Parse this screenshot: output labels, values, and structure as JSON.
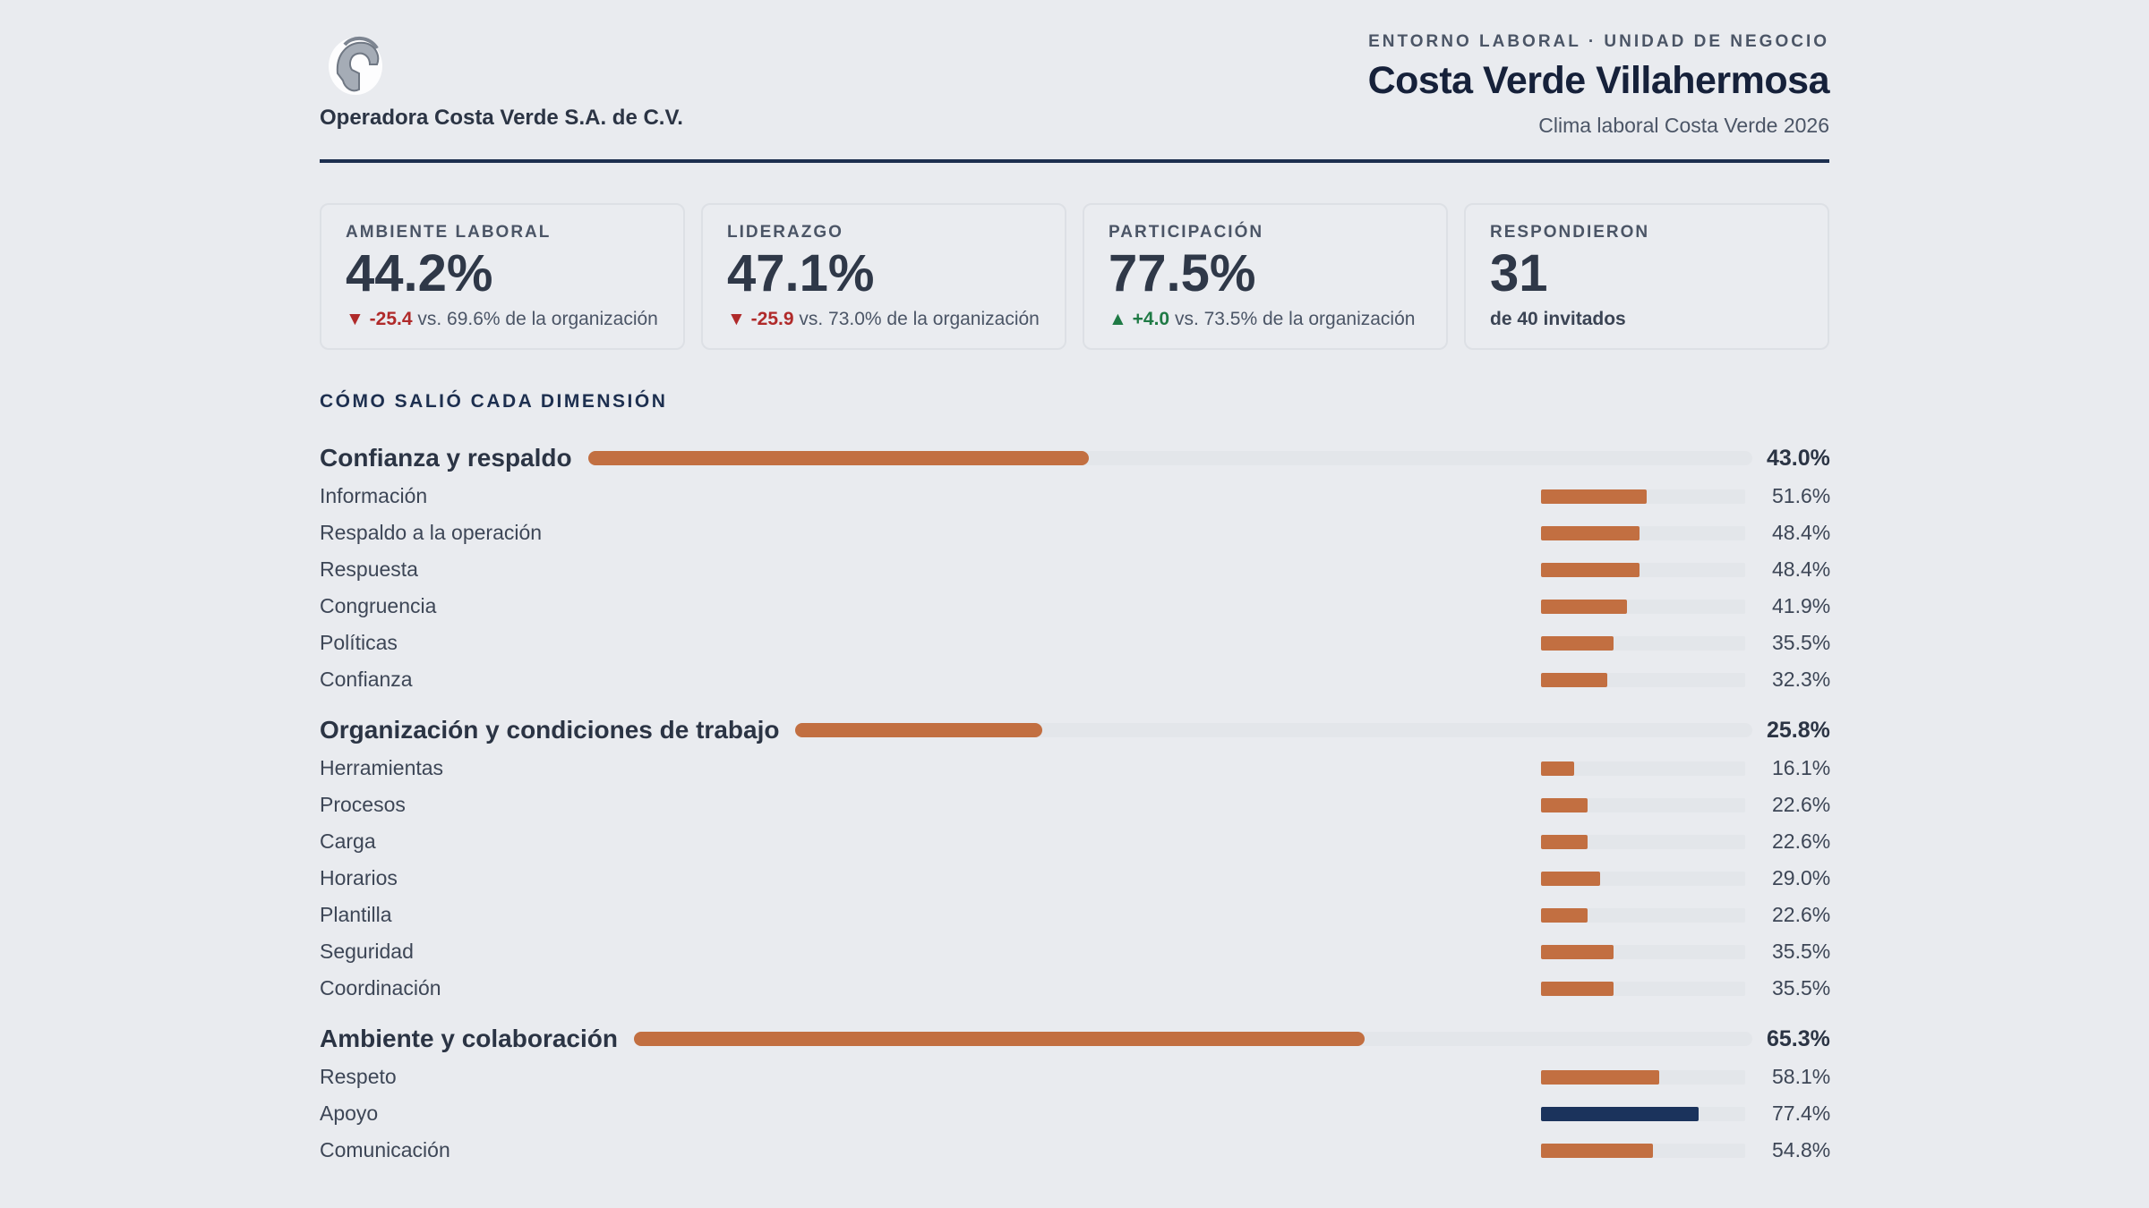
{
  "header": {
    "org_name": "Operadora Costa Verde S.A. de C.V.",
    "kicker": "ENTORNO LABORAL · UNIDAD DE NEGOCIO",
    "unit_title": "Costa Verde Villahermosa",
    "survey": "Clima laboral Costa Verde 2026",
    "logo_icon": "spartan-helmet-icon"
  },
  "cards": [
    {
      "label": "AMBIENTE LABORAL",
      "value": "44.2%",
      "arrow": "▼",
      "delta": "-25.4",
      "rest": " vs. 69.6% de la organización",
      "trend": "down"
    },
    {
      "label": "LIDERAZGO",
      "value": "47.1%",
      "arrow": "▼",
      "delta": "-25.9",
      "rest": " vs. 73.0% de la organización",
      "trend": "down"
    },
    {
      "label": "PARTICIPACIÓN",
      "value": "77.5%",
      "arrow": "▲",
      "delta": "+4.0",
      "rest": " vs. 73.5% de la organización",
      "trend": "up"
    },
    {
      "label": "RESPONDIERON",
      "value": "31",
      "sub": "de 40 invitados"
    }
  ],
  "section_title": "CÓMO SALIÓ CADA DIMENSIÓN",
  "colors": {
    "bar": "#c26f41",
    "bar_top": "#1b335c",
    "accent": "#1d2f4f"
  },
  "dimensions": [
    {
      "name": "Confianza y respaldo",
      "value": 43.0,
      "label": "43.0%",
      "items": [
        {
          "name": "Información",
          "value": 51.6,
          "label": "51.6%"
        },
        {
          "name": "Respaldo a la operación",
          "value": 48.4,
          "label": "48.4%"
        },
        {
          "name": "Respuesta",
          "value": 48.4,
          "label": "48.4%"
        },
        {
          "name": "Congruencia",
          "value": 41.9,
          "label": "41.9%"
        },
        {
          "name": "Políticas",
          "value": 35.5,
          "label": "35.5%"
        },
        {
          "name": "Confianza",
          "value": 32.3,
          "label": "32.3%"
        }
      ]
    },
    {
      "name": "Organización y condiciones de trabajo",
      "value": 25.8,
      "label": "25.8%",
      "items": [
        {
          "name": "Herramientas",
          "value": 16.1,
          "label": "16.1%"
        },
        {
          "name": "Procesos",
          "value": 22.6,
          "label": "22.6%"
        },
        {
          "name": "Carga",
          "value": 22.6,
          "label": "22.6%"
        },
        {
          "name": "Horarios",
          "value": 29.0,
          "label": "29.0%"
        },
        {
          "name": "Plantilla",
          "value": 22.6,
          "label": "22.6%"
        },
        {
          "name": "Seguridad",
          "value": 35.5,
          "label": "35.5%"
        },
        {
          "name": "Coordinación",
          "value": 35.5,
          "label": "35.5%"
        }
      ]
    },
    {
      "name": "Ambiente y colaboración",
      "value": 65.3,
      "label": "65.3%",
      "items": [
        {
          "name": "Respeto",
          "value": 58.1,
          "label": "58.1%"
        },
        {
          "name": "Apoyo",
          "value": 77.4,
          "label": "77.4%",
          "highlight": true
        },
        {
          "name": "Comunicación",
          "value": 54.8,
          "label": "54.8%"
        }
      ]
    }
  ]
}
